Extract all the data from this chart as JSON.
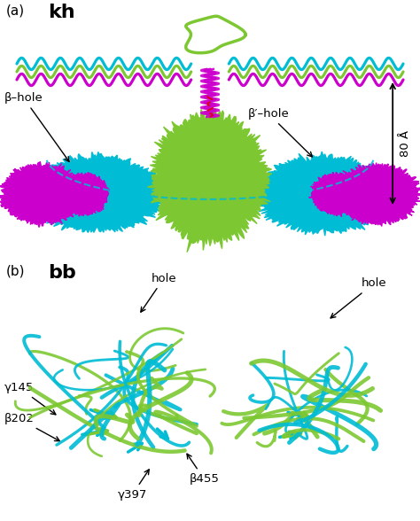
{
  "panel_a_label": "(a)",
  "panel_a_bold": "kh",
  "panel_b_label": "(b)",
  "panel_b_bold": "bb",
  "green": "#7dc832",
  "cyan": "#00bcd4",
  "magenta": "#cc00cc",
  "red": "#dd0000",
  "black": "#000000",
  "white": "#ffffff",
  "label_fontsize": 11,
  "bold_fontsize": 16,
  "annot_fontsize": 9.5,
  "fig_width": 4.74,
  "fig_height": 5.88,
  "fig_dpi": 100
}
